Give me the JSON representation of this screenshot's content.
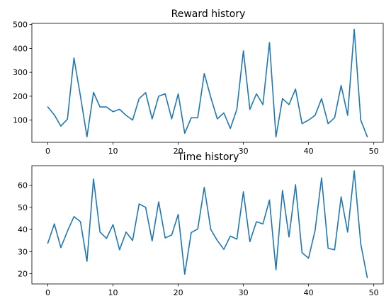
{
  "chart_data": [
    {
      "type": "line",
      "title": "Reward history",
      "xlabel": "",
      "ylabel": "",
      "xlim": [
        -2.45,
        51.45
      ],
      "ylim": [
        7,
        505
      ],
      "xticks": [
        0,
        10,
        20,
        30,
        40,
        50
      ],
      "yticks": [
        100,
        200,
        300,
        400,
        500
      ],
      "grid": false,
      "series": [
        {
          "color": "#1f77b4",
          "x": [
            0,
            1,
            2,
            3,
            4,
            5,
            6,
            7,
            8,
            9,
            10,
            11,
            12,
            13,
            14,
            15,
            16,
            17,
            18,
            19,
            20,
            21,
            22,
            23,
            24,
            25,
            26,
            27,
            28,
            29,
            30,
            31,
            32,
            33,
            34,
            35,
            36,
            37,
            38,
            39,
            40,
            41,
            42,
            43,
            44,
            45,
            46,
            47,
            48,
            49
          ],
          "values": [
            155,
            122,
            75,
            104,
            360,
            200,
            30,
            216,
            155,
            155,
            135,
            145,
            120,
            100,
            190,
            215,
            105,
            200,
            210,
            105,
            210,
            45,
            110,
            110,
            295,
            195,
            105,
            130,
            65,
            145,
            390,
            145,
            210,
            165,
            425,
            30,
            190,
            165,
            230,
            85,
            100,
            120,
            190,
            85,
            110,
            245,
            120,
            480,
            100,
            30
          ]
        }
      ]
    },
    {
      "type": "line",
      "title": "Time history",
      "xlabel": "",
      "ylabel": "",
      "xlim": [
        -2.45,
        51.45
      ],
      "ylim": [
        15.4,
        68.8
      ],
      "xticks": [
        0,
        10,
        20,
        30,
        40,
        50
      ],
      "yticks": [
        20,
        30,
        40,
        50,
        60
      ],
      "grid": false,
      "series": [
        {
          "color": "#1f77b4",
          "x": [
            0,
            1,
            2,
            3,
            4,
            5,
            6,
            7,
            8,
            9,
            10,
            11,
            12,
            13,
            14,
            15,
            16,
            17,
            18,
            19,
            20,
            21,
            22,
            23,
            24,
            25,
            26,
            27,
            28,
            29,
            30,
            31,
            32,
            33,
            34,
            35,
            36,
            37,
            38,
            39,
            40,
            41,
            42,
            43,
            44,
            45,
            46,
            47,
            48,
            49
          ],
          "values": [
            33.8,
            42.5,
            31.8,
            39.2,
            45.8,
            43.5,
            25.6,
            62.8,
            38.8,
            36.0,
            42.2,
            30.8,
            38.8,
            35.0,
            51.5,
            50.0,
            34.8,
            52.5,
            36.2,
            37.5,
            46.8,
            19.8,
            38.6,
            40.2,
            59.0,
            40.0,
            35.0,
            31.0,
            37.0,
            35.6,
            57.0,
            34.5,
            43.5,
            42.5,
            53.3,
            21.8,
            57.6,
            36.6,
            60.2,
            29.5,
            27.0,
            39.5,
            63.3,
            31.5,
            30.8,
            54.7,
            38.8,
            66.5,
            33.5,
            18.2
          ]
        }
      ]
    }
  ]
}
